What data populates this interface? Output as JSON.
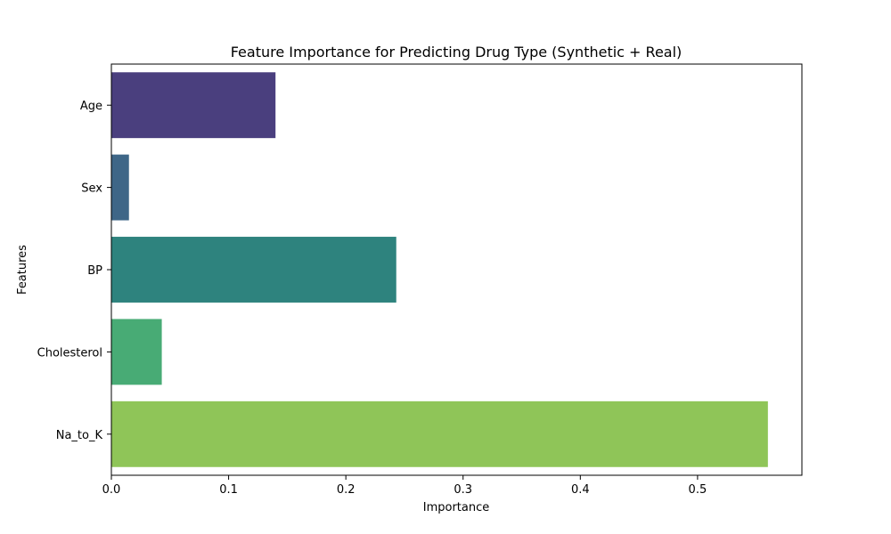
{
  "chart_data": {
    "type": "bar",
    "orientation": "horizontal",
    "title": "Feature Importance for Predicting Drug Type (Synthetic + Real)",
    "xlabel": "Importance",
    "ylabel": "Features",
    "categories": [
      "Age",
      "Sex",
      "BP",
      "Cholesterol",
      "Na_to_K"
    ],
    "values": [
      0.14,
      0.015,
      0.243,
      0.043,
      0.56
    ],
    "colors": [
      "#4a3f7e",
      "#3e6687",
      "#2e837e",
      "#48ab75",
      "#8fc558"
    ],
    "xlim": [
      0,
      0.589
    ],
    "xticks": [
      0.0,
      0.1,
      0.2,
      0.3,
      0.4,
      0.5
    ],
    "xtick_labels": [
      "0.0",
      "0.1",
      "0.2",
      "0.3",
      "0.4",
      "0.5"
    ],
    "grid": false,
    "legend": false
  }
}
